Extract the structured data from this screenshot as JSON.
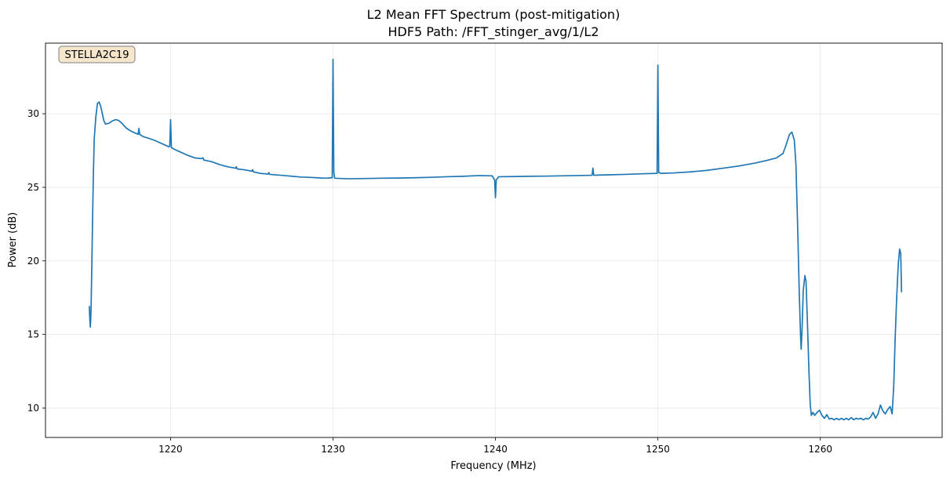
{
  "chart_data": {
    "type": "line",
    "title": "L2 Mean FFT Spectrum (post-mitigation)",
    "subtitle": "HDF5 Path: /FFT_stinger_avg/1/L2",
    "xlabel": "Frequency (MHz)",
    "ylabel": "Power (dB)",
    "xlim": [
      1212.3,
      1267.5
    ],
    "ylim": [
      8.0,
      34.8
    ],
    "xticks": [
      1220,
      1230,
      1240,
      1250,
      1260
    ],
    "yticks": [
      10,
      15,
      20,
      25,
      30
    ],
    "grid": true,
    "annotation": "STELLA2C19",
    "series": [
      {
        "color": "#1f77b4",
        "points": [
          [
            1215.0,
            16.9
          ],
          [
            1215.03,
            16.0
          ],
          [
            1215.06,
            15.5
          ],
          [
            1215.1,
            16.5
          ],
          [
            1215.15,
            19.5
          ],
          [
            1215.2,
            23.0
          ],
          [
            1215.25,
            26.0
          ],
          [
            1215.3,
            28.3
          ],
          [
            1215.4,
            29.8
          ],
          [
            1215.5,
            30.7
          ],
          [
            1215.6,
            30.8
          ],
          [
            1215.7,
            30.5
          ],
          [
            1215.8,
            30.0
          ],
          [
            1215.9,
            29.5
          ],
          [
            1216.0,
            29.3
          ],
          [
            1216.2,
            29.35
          ],
          [
            1216.4,
            29.5
          ],
          [
            1216.6,
            29.6
          ],
          [
            1216.8,
            29.55
          ],
          [
            1217.0,
            29.35
          ],
          [
            1217.3,
            29.0
          ],
          [
            1217.6,
            28.8
          ],
          [
            1217.9,
            28.65
          ],
          [
            1218.0,
            28.6
          ],
          [
            1218.05,
            29.0
          ],
          [
            1218.1,
            28.6
          ],
          [
            1218.3,
            28.45
          ],
          [
            1218.6,
            28.35
          ],
          [
            1219.0,
            28.2
          ],
          [
            1219.5,
            27.95
          ],
          [
            1219.9,
            27.75
          ],
          [
            1219.95,
            27.8
          ],
          [
            1220.0,
            29.6
          ],
          [
            1220.05,
            27.7
          ],
          [
            1220.2,
            27.6
          ],
          [
            1220.5,
            27.45
          ],
          [
            1221.0,
            27.2
          ],
          [
            1221.5,
            27.0
          ],
          [
            1221.9,
            26.95
          ],
          [
            1222.0,
            27.0
          ],
          [
            1222.05,
            26.85
          ],
          [
            1222.5,
            26.75
          ],
          [
            1223.0,
            26.55
          ],
          [
            1223.5,
            26.4
          ],
          [
            1224.0,
            26.3
          ],
          [
            1224.05,
            26.4
          ],
          [
            1224.1,
            26.25
          ],
          [
            1224.5,
            26.2
          ],
          [
            1225.0,
            26.1
          ],
          [
            1225.05,
            26.2
          ],
          [
            1225.1,
            26.05
          ],
          [
            1225.5,
            25.95
          ],
          [
            1226.0,
            25.9
          ],
          [
            1226.05,
            26.0
          ],
          [
            1226.1,
            25.88
          ],
          [
            1227.0,
            25.8
          ],
          [
            1227.5,
            25.75
          ],
          [
            1228.0,
            25.7
          ],
          [
            1228.5,
            25.68
          ],
          [
            1229.0,
            25.65
          ],
          [
            1229.5,
            25.62
          ],
          [
            1229.95,
            25.65
          ],
          [
            1230.0,
            33.7
          ],
          [
            1230.05,
            26.0
          ],
          [
            1230.1,
            25.62
          ],
          [
            1230.5,
            25.6
          ],
          [
            1231.0,
            25.58
          ],
          [
            1232.0,
            25.6
          ],
          [
            1233.0,
            25.62
          ],
          [
            1234.0,
            25.63
          ],
          [
            1235.0,
            25.65
          ],
          [
            1236.0,
            25.68
          ],
          [
            1237.0,
            25.72
          ],
          [
            1238.0,
            25.75
          ],
          [
            1239.0,
            25.8
          ],
          [
            1239.8,
            25.78
          ],
          [
            1239.95,
            25.5
          ],
          [
            1240.0,
            24.3
          ],
          [
            1240.05,
            25.5
          ],
          [
            1240.2,
            25.72
          ],
          [
            1241.0,
            25.73
          ],
          [
            1242.0,
            25.75
          ],
          [
            1243.0,
            25.76
          ],
          [
            1244.0,
            25.78
          ],
          [
            1245.0,
            25.8
          ],
          [
            1245.95,
            25.82
          ],
          [
            1246.0,
            26.3
          ],
          [
            1246.05,
            25.82
          ],
          [
            1247.0,
            25.85
          ],
          [
            1248.0,
            25.88
          ],
          [
            1249.0,
            25.92
          ],
          [
            1249.95,
            25.95
          ],
          [
            1250.0,
            33.3
          ],
          [
            1250.05,
            26.0
          ],
          [
            1250.2,
            25.95
          ],
          [
            1251.0,
            25.98
          ],
          [
            1252.0,
            26.05
          ],
          [
            1253.0,
            26.15
          ],
          [
            1254.0,
            26.3
          ],
          [
            1255.0,
            26.45
          ],
          [
            1256.0,
            26.65
          ],
          [
            1256.8,
            26.85
          ],
          [
            1257.3,
            27.0
          ],
          [
            1257.7,
            27.3
          ],
          [
            1257.9,
            27.9
          ],
          [
            1258.1,
            28.6
          ],
          [
            1258.25,
            28.75
          ],
          [
            1258.4,
            28.2
          ],
          [
            1258.5,
            26.5
          ],
          [
            1258.6,
            22.5
          ],
          [
            1258.7,
            18.0
          ],
          [
            1258.78,
            15.0
          ],
          [
            1258.82,
            14.0
          ],
          [
            1258.88,
            15.5
          ],
          [
            1258.95,
            18.0
          ],
          [
            1259.05,
            19.0
          ],
          [
            1259.12,
            18.6
          ],
          [
            1259.2,
            16.0
          ],
          [
            1259.3,
            12.5
          ],
          [
            1259.38,
            10.2
          ],
          [
            1259.45,
            9.5
          ],
          [
            1259.55,
            9.7
          ],
          [
            1259.65,
            9.5
          ],
          [
            1259.8,
            9.7
          ],
          [
            1259.95,
            9.85
          ],
          [
            1260.1,
            9.5
          ],
          [
            1260.25,
            9.3
          ],
          [
            1260.4,
            9.55
          ],
          [
            1260.55,
            9.25
          ],
          [
            1260.7,
            9.3
          ],
          [
            1260.85,
            9.2
          ],
          [
            1261.0,
            9.3
          ],
          [
            1261.15,
            9.2
          ],
          [
            1261.3,
            9.3
          ],
          [
            1261.45,
            9.2
          ],
          [
            1261.6,
            9.3
          ],
          [
            1261.75,
            9.2
          ],
          [
            1261.9,
            9.35
          ],
          [
            1262.05,
            9.2
          ],
          [
            1262.2,
            9.3
          ],
          [
            1262.35,
            9.25
          ],
          [
            1262.5,
            9.3
          ],
          [
            1262.65,
            9.2
          ],
          [
            1262.8,
            9.3
          ],
          [
            1262.95,
            9.25
          ],
          [
            1263.1,
            9.4
          ],
          [
            1263.25,
            9.7
          ],
          [
            1263.4,
            9.3
          ],
          [
            1263.55,
            9.6
          ],
          [
            1263.7,
            10.2
          ],
          [
            1263.85,
            9.8
          ],
          [
            1264.0,
            9.6
          ],
          [
            1264.15,
            9.9
          ],
          [
            1264.3,
            10.1
          ],
          [
            1264.42,
            9.6
          ],
          [
            1264.52,
            11.5
          ],
          [
            1264.6,
            14.5
          ],
          [
            1264.7,
            17.5
          ],
          [
            1264.8,
            19.8
          ],
          [
            1264.88,
            20.8
          ],
          [
            1264.95,
            20.5
          ],
          [
            1265.0,
            17.9
          ]
        ]
      }
    ]
  }
}
